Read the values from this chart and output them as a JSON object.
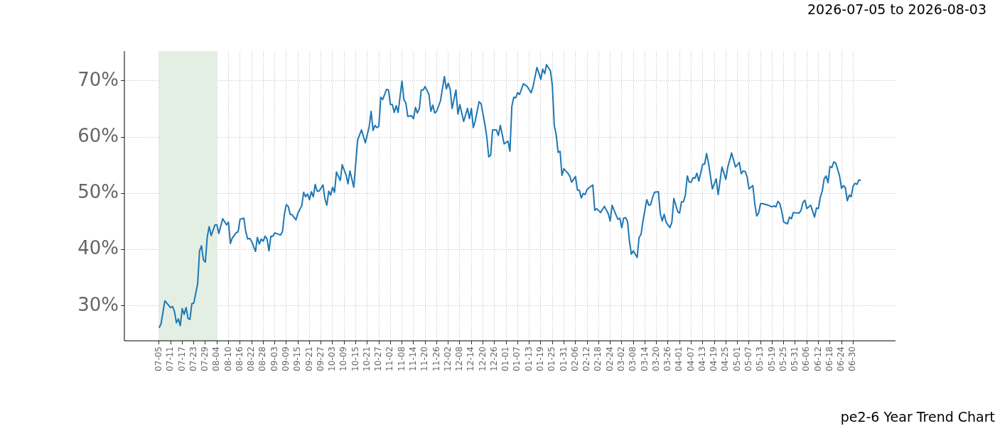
{
  "chart_data": {
    "type": "line",
    "title": "pe2-6 Year Trend Chart",
    "subtitle": "2026-07-05 to 2026-08-03",
    "categories": [
      null,
      null,
      null,
      null,
      null,
      null,
      null,
      null,
      null,
      null,
      null,
      null,
      null,
      null,
      null,
      null,
      null,
      null,
      "07-05",
      null,
      null,
      null,
      null,
      null,
      "07-11",
      null,
      null,
      null,
      null,
      null,
      "07-17",
      null,
      null,
      null,
      null,
      null,
      "07-23",
      null,
      null,
      null,
      null,
      null,
      "07-29",
      null,
      null,
      null,
      null,
      null,
      "08-04",
      null,
      null,
      null,
      null,
      null,
      "08-10",
      null,
      null,
      null,
      null,
      null,
      "08-16",
      null,
      null,
      null,
      null,
      null,
      "08-22",
      null,
      null,
      null,
      null,
      null,
      "08-28",
      null,
      null,
      null,
      null,
      null,
      "09-03",
      null,
      null,
      null,
      null,
      null,
      "09-09",
      null,
      null,
      null,
      null,
      null,
      "09-15",
      null,
      null,
      null,
      null,
      null,
      "09-21",
      null,
      null,
      null,
      null,
      null,
      "09-27",
      null,
      null,
      null,
      null,
      null,
      "10-03",
      null,
      null,
      null,
      null,
      null,
      "10-09",
      null,
      null,
      null,
      null,
      null,
      "10-15",
      null,
      null,
      null,
      null,
      null,
      "10-21",
      null,
      null,
      null,
      null,
      null,
      "10-27",
      null,
      null,
      null,
      null,
      null,
      "11-02",
      null,
      null,
      null,
      null,
      null,
      "11-08",
      null,
      null,
      null,
      null,
      null,
      "11-14",
      null,
      null,
      null,
      null,
      null,
      "11-20",
      null,
      null,
      null,
      null,
      null,
      "11-26",
      null,
      null,
      null,
      null,
      null,
      "12-02",
      null,
      null,
      null,
      null,
      null,
      "12-08",
      null,
      null,
      null,
      null,
      null,
      "12-14",
      null,
      null,
      null,
      null,
      null,
      "12-20",
      null,
      null,
      null,
      null,
      null,
      "12-26",
      null,
      null,
      null,
      null,
      null,
      "01-01",
      null,
      null,
      null,
      null,
      null,
      "01-07",
      null,
      null,
      null,
      null,
      null,
      "01-13",
      null,
      null,
      null,
      null,
      null,
      "01-19",
      null,
      null,
      null,
      null,
      null,
      "01-25",
      null,
      null,
      null,
      null,
      null,
      "01-31",
      null,
      null,
      null,
      null,
      null,
      "02-06",
      null,
      null,
      null,
      null,
      null,
      "02-12",
      null,
      null,
      null,
      null,
      null,
      "02-18",
      null,
      null,
      null,
      null,
      null,
      "02-24",
      null,
      null,
      null,
      null,
      null,
      "03-02",
      null,
      null,
      null,
      null,
      null,
      "03-08",
      null,
      null,
      null,
      null,
      null,
      "03-14",
      null,
      null,
      null,
      null,
      null,
      "03-20",
      null,
      null,
      null,
      null,
      null,
      "03-26",
      null,
      null,
      null,
      null,
      null,
      "04-01",
      null,
      null,
      null,
      null,
      null,
      "04-07",
      null,
      null,
      null,
      null,
      null,
      "04-13",
      null,
      null,
      null,
      null,
      null,
      "04-19",
      null,
      null,
      null,
      null,
      null,
      "04-25",
      null,
      null,
      null,
      null,
      null,
      "05-01",
      null,
      null,
      null,
      null,
      null,
      "05-07",
      null,
      null,
      null,
      null,
      null,
      "05-13",
      null,
      null,
      null,
      null,
      null,
      "05-19",
      null,
      null,
      null,
      null,
      null,
      "05-25",
      null,
      null,
      null,
      null,
      null,
      "05-31",
      null,
      null,
      null,
      null,
      null,
      "06-06",
      null,
      null,
      null,
      null,
      null,
      "06-12",
      null,
      null,
      null,
      null,
      null,
      "06-18",
      null,
      null,
      null,
      null,
      null,
      "06-24",
      null,
      null,
      null,
      null,
      null,
      "06-30",
      null,
      null,
      null,
      null,
      null,
      null,
      null,
      null,
      null,
      null,
      null,
      null,
      null,
      null,
      null,
      null,
      null,
      null,
      null,
      null,
      null,
      null
    ],
    "ylim": [
      23.8,
      75.3
    ],
    "yticks": [
      {
        "value": 30,
        "label": "30%"
      },
      {
        "value": 40,
        "label": "40%"
      },
      {
        "value": 50,
        "label": "50%"
      },
      {
        "value": 60,
        "label": "60%"
      },
      {
        "value": 70,
        "label": "70%"
      }
    ],
    "grid": true,
    "bands": [
      {
        "axis": "x",
        "from": "07-05",
        "to": "08-04",
        "color": "#e3efe3"
      }
    ],
    "series": [
      {
        "color": "#1f77b4",
        "values": [
          null,
          null,
          null,
          null,
          null,
          null,
          null,
          null,
          null,
          null,
          null,
          null,
          null,
          null,
          null,
          null,
          null,
          null,
          26.1,
          26.8,
          null,
          30.9,
          30.5,
          null,
          29.7,
          29.9,
          29.0,
          27.0,
          27.7,
          26.5,
          29.5,
          28.5,
          29.7,
          27.8,
          27.6,
          30.4,
          30.5,
          null,
          33.9,
          39.8,
          40.7,
          38.2,
          37.8,
          42.3,
          44.1,
          42.5,
          null,
          44.4,
          44.4,
          42.9,
          null,
          45.5,
          null,
          44.4,
          44.9,
          41.1,
          42.1,
          null,
          43.0,
          43.2,
          45.4,
          null,
          45.6,
          43.1,
          41.9,
          42.0,
          41.5,
          null,
          39.7,
          42.2,
          41.0,
          41.9,
          41.5,
          42.4,
          41.9,
          39.8,
          42.4,
          42.4,
          43.0,
          null,
          null,
          42.6,
          43.2,
          46.3,
          48.0,
          47.7,
          46.3,
          46.2,
          null,
          45.3,
          46.5,
          null,
          47.8,
          50.2,
          49.4,
          49.9,
          48.9,
          50.3,
          49.4,
          51.6,
          50.4,
          50.4,
          null,
          51.5,
          49.1,
          47.9,
          50.4,
          49.7,
          51.1,
          50.2,
          53.8,
          null,
          52.3,
          55.1,
          null,
          53.3,
          51.7,
          54.0,
          null,
          51.1,
          null,
          59.5,
          null,
          61.3,
          null,
          59.0,
          null,
          61.9,
          64.6,
          61.2,
          62.1,
          61.7,
          61.9,
          67.1,
          66.7,
          null,
          68.5,
          68.4,
          65.8,
          65.8,
          64.4,
          65.6,
          64.4,
          null,
          70.0,
          66.7,
          66.1,
          63.7,
          null,
          63.8,
          63.3,
          65.3,
          64.3,
          65.1,
          68.4,
          68.4,
          69.0,
          null,
          67.6,
          64.6,
          65.7,
          64.3,
          64.6,
          null,
          66.5,
          null,
          70.8,
          68.6,
          69.6,
          68.5,
          65.1,
          null,
          68.4,
          64.1,
          65.8,
          null,
          62.8,
          null,
          65.1,
          63.3,
          65.1,
          61.7,
          62.9,
          null,
          66.3,
          66.0,
          null,
          62.3,
          60.0,
          56.5,
          56.8,
          61.3,
          null,
          61.3,
          60.3,
          62.1,
          null,
          58.8,
          null,
          59.3,
          57.5,
          65.5,
          67.1,
          67.0,
          67.9,
          67.6,
          null,
          69.5,
          null,
          69.0,
          null,
          67.9,
          69.0,
          null,
          72.4,
          71.4,
          70.3,
          72.1,
          71.3,
          72.9,
          null,
          71.8,
          69.2,
          62.1,
          60.4,
          57.3,
          57.5,
          53.2,
          54.4,
          null,
          53.6,
          53.1,
          52.0,
          null,
          53.0,
          50.6,
          50.6,
          49.2,
          50.0,
          49.8,
          50.7,
          51.0,
          null,
          51.5,
          47.0,
          47.3,
          null,
          46.6,
          null,
          47.7,
          null,
          46.4,
          45.1,
          47.9,
          null,
          46.2,
          45.4,
          45.6,
          43.9,
          45.6,
          45.7,
          45.0,
          41.5,
          39.2,
          39.8,
          null,
          38.6,
          42.2,
          42.7,
          45.1,
          null,
          48.9,
          47.9,
          48.0,
          49.3,
          50.2,
          null,
          50.3,
          46.4,
          45.1,
          46.3,
          44.9,
          null,
          43.9,
          44.9,
          49.1,
          null,
          46.8,
          46.5,
          48.5,
          48.5,
          49.7,
          53.1,
          52.0,
          52.0,
          52.8,
          52.7,
          53.6,
          52.2,
          null,
          55.2,
          55.2,
          57.1,
          55.4,
          null,
          50.8,
          null,
          52.6,
          49.8,
          null,
          54.7,
          null,
          52.5,
          54.7,
          null,
          57.2,
          null,
          54.7,
          null,
          55.5,
          53.5,
          54.0,
          53.9,
          53.0,
          50.8,
          null,
          51.4,
          48.2,
          46.0,
          46.5,
          48.2,
          48.2,
          null,
          null,
          47.9,
          null,
          47.6,
          47.8,
          47.6,
          48.6,
          48.2,
          46.8,
          44.9,
          null,
          44.6,
          45.8,
          45.5,
          46.6,
          null,
          null,
          46.5,
          47.0,
          48.4,
          48.8,
          47.3,
          null,
          47.9,
          null,
          45.8,
          47.4,
          47.3,
          49.3,
          50.4,
          52.6,
          53.1,
          51.9,
          54.8,
          54.6,
          55.6,
          55.4,
          null,
          53.1,
          50.9,
          51.4,
          51.0,
          48.7,
          49.7,
          49.4,
          51.3,
          51.8,
          51.6,
          52.4,
          52.3,
          null,
          null,
          null,
          null,
          null,
          null,
          null,
          null,
          null,
          null,
          null,
          null,
          null,
          null,
          null,
          null,
          null,
          null
        ]
      }
    ]
  }
}
